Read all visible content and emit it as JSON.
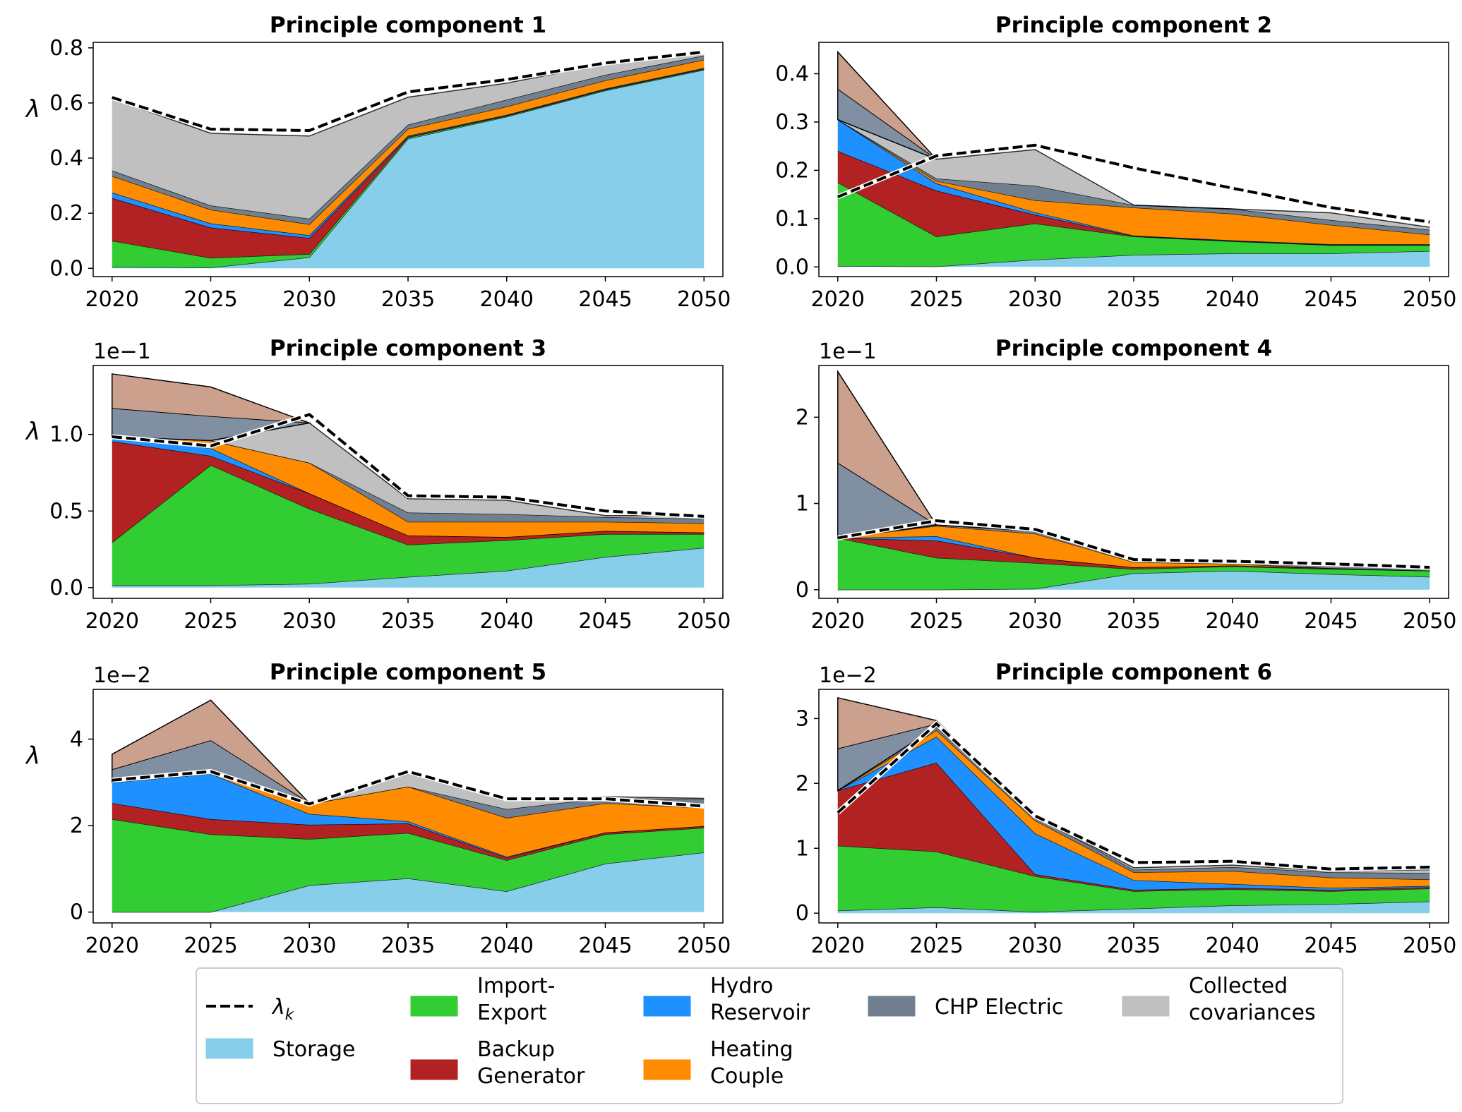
{
  "legend": {
    "items": [
      {
        "key": "lambda",
        "label": "λ",
        "sub": "k",
        "color": "#000000",
        "kind": "dashed-line"
      },
      {
        "key": "storage",
        "label": "Storage",
        "color": "#87ceeb",
        "kind": "patch"
      },
      {
        "key": "import",
        "label": "Import-\nExport",
        "color": "#32cd32",
        "kind": "patch"
      },
      {
        "key": "backup",
        "label": "Backup\nGenerator",
        "color": "#b22222",
        "kind": "patch"
      },
      {
        "key": "hydro",
        "label": "Hydro\nReservoir",
        "color": "#1e90ff",
        "kind": "patch"
      },
      {
        "key": "heating",
        "label": "Heating\nCouple",
        "color": "#ff8c00",
        "kind": "patch"
      },
      {
        "key": "chp",
        "label": "CHP Electric",
        "color": "#708090",
        "kind": "patch"
      },
      {
        "key": "collected",
        "label": "Collected\ncovariances",
        "color": "#c0c0c0",
        "kind": "patch"
      }
    ]
  },
  "chart_data": [
    {
      "type": "area",
      "title": "Principle component 1",
      "ylabel": "λ",
      "offset_text": "",
      "x": [
        2020,
        2025,
        2030,
        2035,
        2040,
        2045,
        2050
      ],
      "ylim": [
        -0.03,
        0.82
      ],
      "yticks": [
        0.0,
        0.2,
        0.4,
        0.6,
        0.8
      ],
      "ytick_labels": [
        "0.0",
        "0.2",
        "0.4",
        "0.6",
        "0.8"
      ],
      "series": [
        {
          "key": "storage",
          "values": [
            0.005,
            0.003,
            0.04,
            0.47,
            0.55,
            0.645,
            0.72
          ]
        },
        {
          "key": "import",
          "values": [
            0.095,
            0.035,
            0.012,
            0.005,
            0.003,
            0.003,
            0.003
          ]
        },
        {
          "key": "backup",
          "values": [
            0.155,
            0.11,
            0.058,
            0.003,
            0.002,
            0.002,
            0.002
          ]
        },
        {
          "key": "hydro",
          "values": [
            0.02,
            0.015,
            0.01,
            0.003,
            0.002,
            0.002,
            0.002
          ]
        },
        {
          "key": "heating",
          "values": [
            0.06,
            0.05,
            0.04,
            0.025,
            0.03,
            0.03,
            0.03
          ]
        },
        {
          "key": "chp",
          "values": [
            0.02,
            0.015,
            0.02,
            0.015,
            0.025,
            0.02,
            0.015
          ]
        },
        {
          "key": "collected",
          "values": [
            0.26,
            0.262,
            0.3,
            0.1,
            0.06,
            0.04,
            0.008
          ]
        }
      ],
      "lambda": [
        0.62,
        0.505,
        0.5,
        0.64,
        0.685,
        0.745,
        0.785
      ],
      "top_extra": [
        0,
        0,
        0,
        0,
        0,
        0,
        0
      ]
    },
    {
      "type": "area",
      "title": "Principle component 2",
      "ylabel": "",
      "offset_text": "",
      "x": [
        2020,
        2025,
        2030,
        2035,
        2040,
        2045,
        2050
      ],
      "ylim": [
        -0.02,
        0.465
      ],
      "yticks": [
        0.0,
        0.1,
        0.2,
        0.3,
        0.4
      ],
      "ytick_labels": [
        "0.0",
        "0.1",
        "0.2",
        "0.3",
        "0.4"
      ],
      "series": [
        {
          "key": "storage",
          "values": [
            0.002,
            0.001,
            0.015,
            0.025,
            0.028,
            0.028,
            0.033
          ]
        },
        {
          "key": "import",
          "values": [
            0.173,
            0.062,
            0.075,
            0.038,
            0.025,
            0.017,
            0.012
          ]
        },
        {
          "key": "backup",
          "values": [
            0.065,
            0.095,
            0.018,
            0.001,
            0.001,
            0.001,
            0.001
          ]
        },
        {
          "key": "hydro",
          "values": [
            0.065,
            0.015,
            0.005,
            0.001,
            0.001,
            0.001,
            0.001
          ]
        },
        {
          "key": "heating",
          "values": [
            0.0,
            0.005,
            0.025,
            0.058,
            0.055,
            0.04,
            0.02
          ]
        },
        {
          "key": "chp",
          "values": [
            0.0,
            0.005,
            0.03,
            0.005,
            0.01,
            0.01,
            0.01
          ]
        },
        {
          "key": "collected",
          "values": [
            0.0,
            0.04,
            0.075,
            0.0,
            0.0,
            0.015,
            0.005
          ]
        }
      ],
      "lambda": [
        0.145,
        0.23,
        0.252,
        0.205,
        0.163,
        0.123,
        0.093
      ],
      "top_extra": [
        0.14,
        0,
        0,
        0,
        0,
        0,
        0
      ]
    },
    {
      "type": "area",
      "title": "Principle component 3",
      "ylabel": "λ",
      "offset_text": "1e−1",
      "x": [
        2020,
        2025,
        2030,
        2035,
        2040,
        2045,
        2050
      ],
      "ylim": [
        -0.07,
        1.45
      ],
      "yticks": [
        0.0,
        0.5,
        1.0
      ],
      "ytick_labels": [
        "0.0",
        "0.5",
        "1.0"
      ],
      "series": [
        {
          "key": "storage",
          "values": [
            0.015,
            0.015,
            0.025,
            0.07,
            0.11,
            0.2,
            0.26
          ]
        },
        {
          "key": "import",
          "values": [
            0.28,
            0.785,
            0.49,
            0.21,
            0.2,
            0.15,
            0.09
          ]
        },
        {
          "key": "backup",
          "values": [
            0.66,
            0.06,
            0.1,
            0.06,
            0.02,
            0.02,
            0.01
          ]
        },
        {
          "key": "hydro",
          "values": [
            0.03,
            0.05,
            0.0,
            0.0,
            0.0,
            0.0,
            0.0
          ]
        },
        {
          "key": "heating",
          "values": [
            0.0,
            0.05,
            0.2,
            0.09,
            0.1,
            0.06,
            0.06
          ]
        },
        {
          "key": "chp",
          "values": [
            0.0,
            0.0,
            0.0,
            0.06,
            0.05,
            0.03,
            0.03
          ]
        },
        {
          "key": "collected",
          "values": [
            0.0,
            0.0,
            0.26,
            0.09,
            0.09,
            0.01,
            0.02
          ]
        }
      ],
      "lambda": [
        0.985,
        0.925,
        1.13,
        0.6,
        0.59,
        0.5,
        0.465
      ],
      "top_extra": [
        0.41,
        0.35,
        0,
        0,
        0,
        0,
        0
      ]
    },
    {
      "type": "area",
      "title": "Principle component 4",
      "ylabel": "",
      "offset_text": "1e−1",
      "x": [
        2020,
        2025,
        2030,
        2035,
        2040,
        2045,
        2050
      ],
      "ylim": [
        -0.1,
        2.6
      ],
      "yticks": [
        0,
        1,
        2
      ],
      "ytick_labels": [
        "0",
        "1",
        "2"
      ],
      "series": [
        {
          "key": "storage",
          "values": [
            0.0,
            0.0,
            0.01,
            0.19,
            0.22,
            0.18,
            0.15
          ]
        },
        {
          "key": "import",
          "values": [
            0.6,
            0.37,
            0.3,
            0.05,
            0.05,
            0.06,
            0.07
          ]
        },
        {
          "key": "backup",
          "values": [
            0.0,
            0.2,
            0.06,
            0.02,
            0.01,
            0.01,
            0.0
          ]
        },
        {
          "key": "hydro",
          "values": [
            0.0,
            0.05,
            0.0,
            0.0,
            0.0,
            0.0,
            0.0
          ]
        },
        {
          "key": "heating",
          "values": [
            0.0,
            0.12,
            0.28,
            0.06,
            0.02,
            0.0,
            0.0
          ]
        },
        {
          "key": "chp",
          "values": [
            0.0,
            0.01,
            0.03,
            0.02,
            0.02,
            0.03,
            0.02
          ]
        },
        {
          "key": "collected",
          "values": [
            0.0,
            0.0,
            0.0,
            0.0,
            0.0,
            0.0,
            0.0
          ]
        }
      ],
      "lambda": [
        0.6,
        0.8,
        0.7,
        0.35,
        0.33,
        0.3,
        0.26
      ],
      "top_extra": [
        1.93,
        0,
        0,
        0,
        0,
        0,
        0
      ]
    },
    {
      "type": "area",
      "title": "Principle component 5",
      "ylabel": "λ",
      "offset_text": "1e−2",
      "x": [
        2020,
        2025,
        2030,
        2035,
        2040,
        2045,
        2050
      ],
      "ylim": [
        -0.25,
        5.15
      ],
      "yticks": [
        0,
        2,
        4
      ],
      "ytick_labels": [
        "0",
        "2",
        "4"
      ],
      "series": [
        {
          "key": "storage",
          "values": [
            0.0,
            0.0,
            0.62,
            0.78,
            0.48,
            1.12,
            1.38
          ]
        },
        {
          "key": "import",
          "values": [
            2.15,
            1.8,
            1.07,
            1.05,
            0.72,
            0.68,
            0.57
          ]
        },
        {
          "key": "backup",
          "values": [
            0.37,
            0.35,
            0.33,
            0.22,
            0.06,
            0.04,
            0.04
          ]
        },
        {
          "key": "hydro",
          "values": [
            0.48,
            1.05,
            0.25,
            0.05,
            0.02,
            0.0,
            0.0
          ]
        },
        {
          "key": "heating",
          "values": [
            0.0,
            0.0,
            0.23,
            0.8,
            0.9,
            0.68,
            0.42
          ]
        },
        {
          "key": "chp",
          "values": [
            0.0,
            0.0,
            0.0,
            0.0,
            0.2,
            0.12,
            0.2
          ]
        },
        {
          "key": "collected",
          "values": [
            0.0,
            0.0,
            0.02,
            0.3,
            0.22,
            0.03,
            0.02
          ]
        }
      ],
      "lambda": [
        3.05,
        3.25,
        2.5,
        3.25,
        2.62,
        2.62,
        2.45
      ],
      "top_extra": [
        0.65,
        1.7,
        0,
        0,
        0,
        0,
        0
      ]
    },
    {
      "type": "area",
      "title": "Principle component 6",
      "ylabel": "",
      "offset_text": "1e−2",
      "x": [
        2020,
        2025,
        2030,
        2035,
        2040,
        2045,
        2050
      ],
      "ylim": [
        -0.15,
        3.45
      ],
      "yticks": [
        0,
        1,
        2,
        3
      ],
      "ytick_labels": [
        "0",
        "1",
        "2",
        "3"
      ],
      "series": [
        {
          "key": "storage",
          "values": [
            0.04,
            0.09,
            0.02,
            0.07,
            0.12,
            0.14,
            0.18
          ]
        },
        {
          "key": "import",
          "values": [
            1.0,
            0.86,
            0.55,
            0.27,
            0.25,
            0.2,
            0.2
          ]
        },
        {
          "key": "backup",
          "values": [
            0.85,
            1.37,
            0.03,
            0.02,
            0.02,
            0.02,
            0.02
          ]
        },
        {
          "key": "hydro",
          "values": [
            0.0,
            0.4,
            0.63,
            0.15,
            0.06,
            0.03,
            0.02
          ]
        },
        {
          "key": "heating",
          "values": [
            0.0,
            0.1,
            0.2,
            0.12,
            0.2,
            0.16,
            0.1
          ]
        },
        {
          "key": "chp",
          "values": [
            0.0,
            0.05,
            0.06,
            0.04,
            0.06,
            0.08,
            0.1
          ]
        },
        {
          "key": "collected",
          "values": [
            0.0,
            0.0,
            0.0,
            0.03,
            0.03,
            0.02,
            0.05
          ]
        }
      ],
      "lambda": [
        1.55,
        2.92,
        1.5,
        0.78,
        0.8,
        0.68,
        0.71
      ],
      "top_extra": [
        1.43,
        0.1,
        0,
        0,
        0,
        0,
        0
      ]
    }
  ]
}
